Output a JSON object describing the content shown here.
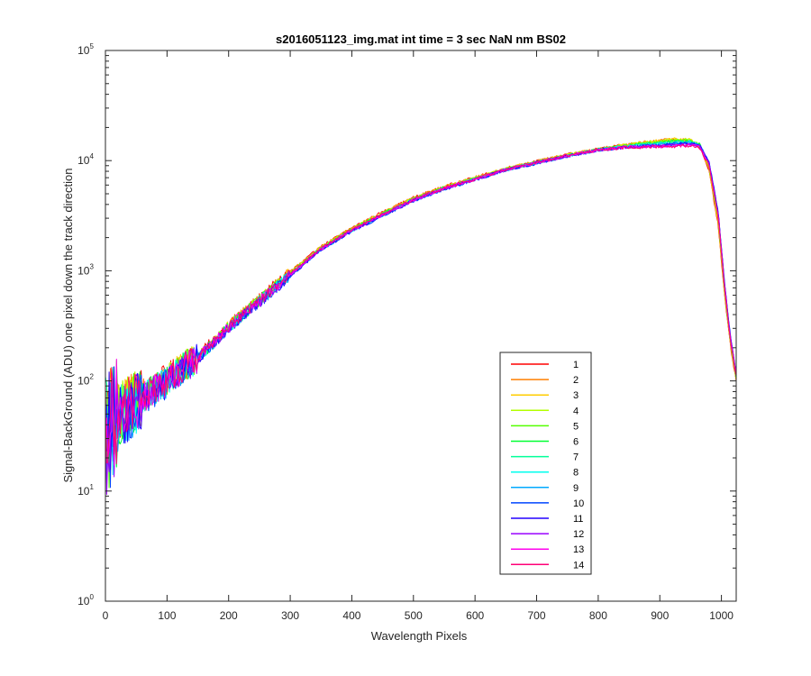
{
  "chart_data": {
    "type": "line",
    "title": "s2016051123_img.mat int time = 3 sec  NaN nm BS02",
    "xlabel": "Wavelength Pixels",
    "ylabel": "Signal-BackGround (ADU) one pixel down the track direction",
    "xlim": [
      0,
      1024
    ],
    "ylim": [
      1,
      100000
    ],
    "yscale": "log",
    "grid": false,
    "legend_position": "lower-right",
    "x_ticks": [
      "0",
      "100",
      "200",
      "300",
      "400",
      "500",
      "600",
      "700",
      "800",
      "900",
      "1000"
    ],
    "x_tick_values": [
      0,
      100,
      200,
      300,
      400,
      500,
      600,
      700,
      800,
      900,
      1000
    ],
    "y_ticks": [
      {
        "base": "10",
        "exp": "0",
        "value": 1
      },
      {
        "base": "10",
        "exp": "1",
        "value": 10
      },
      {
        "base": "10",
        "exp": "2",
        "value": 100
      },
      {
        "base": "10",
        "exp": "3",
        "value": 1000
      },
      {
        "base": "10",
        "exp": "4",
        "value": 10000
      },
      {
        "base": "10",
        "exp": "5",
        "value": 100000
      }
    ],
    "x": [
      0,
      25,
      50,
      75,
      100,
      125,
      150,
      175,
      200,
      250,
      300,
      350,
      400,
      450,
      500,
      550,
      600,
      650,
      700,
      750,
      800,
      850,
      900,
      930,
      950,
      965,
      980,
      995,
      1005,
      1015,
      1024
    ],
    "series": [
      {
        "name": "1",
        "color": "#ff0000",
        "values": [
          40,
          55,
          70,
          85,
          105,
          135,
          170,
          230,
          320,
          560,
          980,
          1650,
          2450,
          3400,
          4600,
          5800,
          7000,
          8500,
          9800,
          11300,
          12700,
          14000,
          15100,
          15300,
          15000,
          13200,
          8000,
          2500,
          600,
          200,
          100
        ]
      },
      {
        "name": "2",
        "color": "#ff7f00",
        "values": [
          38,
          54,
          69,
          84,
          104,
          134,
          168,
          228,
          318,
          555,
          975,
          1640,
          2440,
          3380,
          4580,
          5780,
          6980,
          8480,
          9780,
          11280,
          12680,
          14100,
          15300,
          15600,
          15300,
          13400,
          8200,
          2600,
          620,
          205,
          102
        ]
      },
      {
        "name": "3",
        "color": "#ffcc00",
        "values": [
          36,
          53,
          68,
          83,
          103,
          133,
          167,
          226,
          316,
          550,
          965,
          1630,
          2420,
          3350,
          4550,
          5740,
          6940,
          8440,
          9740,
          11240,
          12640,
          14000,
          15300,
          15700,
          15500,
          13700,
          8500,
          2700,
          640,
          210,
          104
        ]
      },
      {
        "name": "4",
        "color": "#b3ff00",
        "values": [
          35,
          52,
          67,
          82,
          102,
          132,
          166,
          224,
          314,
          545,
          955,
          1620,
          2400,
          3320,
          4500,
          5700,
          6900,
          8400,
          9700,
          11200,
          12600,
          13900,
          15000,
          15500,
          15400,
          13800,
          8700,
          2800,
          660,
          215,
          106
        ]
      },
      {
        "name": "5",
        "color": "#55ff00",
        "values": [
          34,
          51,
          66,
          81,
          101,
          131,
          165,
          222,
          312,
          540,
          945,
          1610,
          2380,
          3300,
          4480,
          5660,
          6860,
          8360,
          9660,
          11160,
          12560,
          13800,
          14800,
          15300,
          15200,
          13900,
          8900,
          2900,
          680,
          220,
          108
        ]
      },
      {
        "name": "6",
        "color": "#00ff33",
        "values": [
          33,
          50,
          65,
          80,
          100,
          130,
          163,
          220,
          310,
          535,
          935,
          1600,
          2360,
          3280,
          4450,
          5630,
          6830,
          8330,
          9630,
          11130,
          12530,
          13700,
          14600,
          15100,
          15100,
          14000,
          9100,
          3000,
          700,
          225,
          110
        ]
      },
      {
        "name": "7",
        "color": "#00ff99",
        "values": [
          32,
          49,
          64,
          79,
          99,
          129,
          162,
          218,
          308,
          530,
          925,
          1590,
          2340,
          3250,
          4420,
          5600,
          6800,
          8300,
          9600,
          11100,
          12500,
          13600,
          14400,
          14900,
          14900,
          14000,
          9300,
          3100,
          720,
          230,
          112
        ]
      },
      {
        "name": "8",
        "color": "#00ffee",
        "values": [
          31,
          48,
          63,
          78,
          98,
          128,
          161,
          216,
          306,
          525,
          915,
          1575,
          2320,
          3220,
          4390,
          5570,
          6770,
          8270,
          9570,
          11070,
          12470,
          13500,
          14200,
          14700,
          14700,
          13900,
          9400,
          3200,
          740,
          235,
          114
        ]
      },
      {
        "name": "9",
        "color": "#00aaff",
        "values": [
          30,
          47,
          62,
          77,
          97,
          127,
          160,
          214,
          304,
          520,
          905,
          1560,
          2300,
          3190,
          4350,
          5530,
          6730,
          8230,
          9530,
          11030,
          12430,
          13400,
          14000,
          14500,
          14500,
          13800,
          9500,
          3300,
          760,
          240,
          116
        ]
      },
      {
        "name": "10",
        "color": "#0044ff",
        "values": [
          30,
          46,
          61,
          76,
          96,
          126,
          158,
          212,
          302,
          515,
          895,
          1545,
          2280,
          3160,
          4320,
          5500,
          6700,
          8200,
          9500,
          11000,
          12400,
          13300,
          13800,
          14300,
          14300,
          13700,
          9600,
          3400,
          780,
          245,
          118
        ]
      },
      {
        "name": "11",
        "color": "#2200ff",
        "values": [
          31,
          47,
          62,
          77,
          97,
          127,
          159,
          213,
          303,
          518,
          900,
          1550,
          2290,
          3170,
          4330,
          5510,
          6710,
          8210,
          9510,
          11010,
          12410,
          13300,
          13700,
          14100,
          14200,
          13600,
          9500,
          3300,
          760,
          240,
          116
        ]
      },
      {
        "name": "12",
        "color": "#9900ff",
        "values": [
          32,
          48,
          63,
          78,
          98,
          128,
          161,
          216,
          306,
          524,
          912,
          1568,
          2310,
          3200,
          4370,
          5550,
          6750,
          8250,
          9550,
          11050,
          12450,
          13300,
          13600,
          13900,
          14000,
          13400,
          9300,
          3200,
          740,
          235,
          114
        ]
      },
      {
        "name": "13",
        "color": "#ff00ee",
        "values": [
          33,
          50,
          65,
          80,
          100,
          130,
          163,
          220,
          310,
          532,
          925,
          1585,
          2340,
          3240,
          4410,
          5590,
          6790,
          8290,
          9590,
          11090,
          12490,
          13300,
          13500,
          13700,
          13800,
          13200,
          9100,
          3100,
          720,
          230,
          112
        ]
      },
      {
        "name": "14",
        "color": "#ff0077",
        "values": [
          34,
          51,
          66,
          81,
          101,
          131,
          165,
          222,
          312,
          538,
          935,
          1600,
          2360,
          3270,
          4440,
          5620,
          6820,
          8320,
          9620,
          11120,
          12520,
          13200,
          13300,
          13500,
          13600,
          13000,
          8900,
          3000,
          700,
          225,
          110
        ]
      }
    ]
  }
}
